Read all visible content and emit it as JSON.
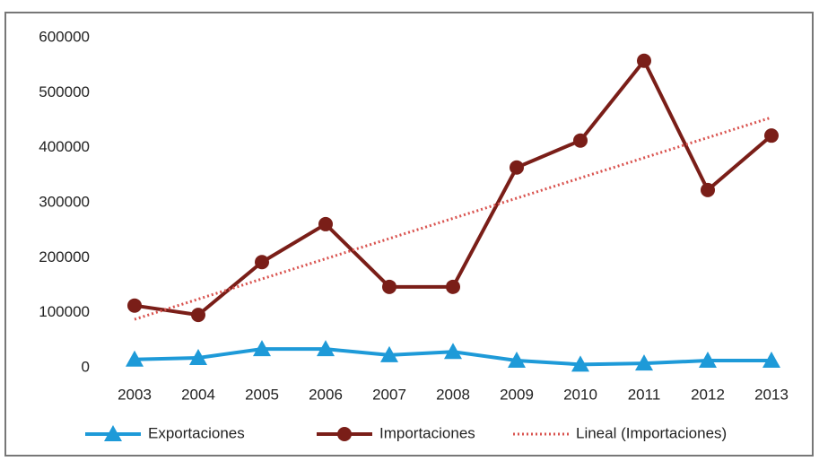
{
  "chart_data": {
    "type": "line",
    "categories": [
      "2003",
      "2004",
      "2005",
      "2006",
      "2007",
      "2008",
      "2009",
      "2010",
      "2011",
      "2012",
      "2013"
    ],
    "series": [
      {
        "name": "Exportaciones",
        "color": "#1e9ad8",
        "marker": "triangle",
        "style": "solid",
        "values": [
          15000,
          18000,
          34000,
          34000,
          23000,
          29000,
          13000,
          6000,
          8000,
          13000,
          13000
        ]
      },
      {
        "name": "Importaciones",
        "color": "#7a1e18",
        "marker": "circle",
        "style": "solid",
        "values": [
          113000,
          96000,
          192000,
          261000,
          147000,
          147000,
          364000,
          413000,
          558000,
          323000,
          422000
        ]
      },
      {
        "name": "Lineal (Importaciones)",
        "color": "#d9534f",
        "marker": "none",
        "style": "dotted",
        "values": [
          88000,
          124700,
          161400,
          198100,
          234800,
          271500,
          308200,
          344900,
          381600,
          418300,
          455000
        ]
      }
    ],
    "ylim": [
      0,
      600000
    ],
    "yticks": [
      0,
      100000,
      200000,
      300000,
      400000,
      500000,
      600000
    ],
    "grid": false
  }
}
